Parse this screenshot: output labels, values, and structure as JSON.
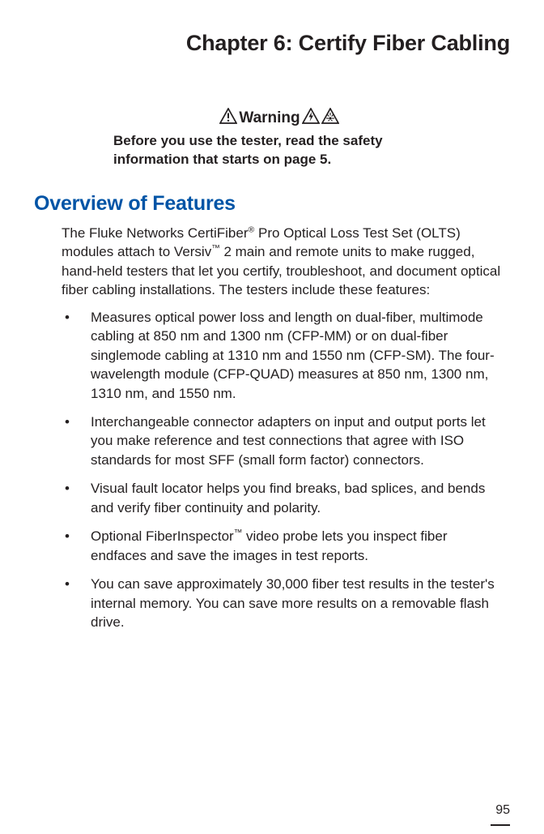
{
  "colors": {
    "heading_blue": "#0054a6",
    "text": "#231f20",
    "background": "#ffffff"
  },
  "chapter": {
    "title": "Chapter 6: Certify Fiber Cabling"
  },
  "warning": {
    "label": "Warning",
    "text": "Before you use the tester, read the safety information that starts on page 5."
  },
  "section": {
    "heading": "Overview of Features",
    "intro_html": "The Fluke Networks CertiFiber<sup>®</sup> Pro Optical Loss Test Set (OLTS) modules attach to Versiv<sup>™</sup> 2 main and remote units to make rugged, hand-held testers that let you certify, troubleshoot, and document optical fiber cabling installations. The testers include these features:",
    "bullets": [
      "Measures optical power loss and length on dual-fiber, multimode cabling at 850 nm and 1300 nm (CFP-MM) or on dual-fiber singlemode cabling at 1310 nm and 1550 nm (CFP-SM). The four-wavelength module (CFP-QUAD) measures at 850 nm, 1300 nm, 1310 nm, and 1550 nm.",
      "Interchangeable connector adapters on input and output ports let you make reference and test connections that agree with ISO standards for most SFF (small form factor) connectors.",
      "Visual fault locator helps you find breaks, bad splices, and bends and verify fiber continuity and polarity.",
      "Optional FiberInspector<sup>™</sup> video probe lets you inspect fiber endfaces and save the images in test reports.",
      "You can save approximately 30,000 fiber test results in the tester's internal memory. You can save more results on a removable flash drive."
    ]
  },
  "page_number": "95"
}
